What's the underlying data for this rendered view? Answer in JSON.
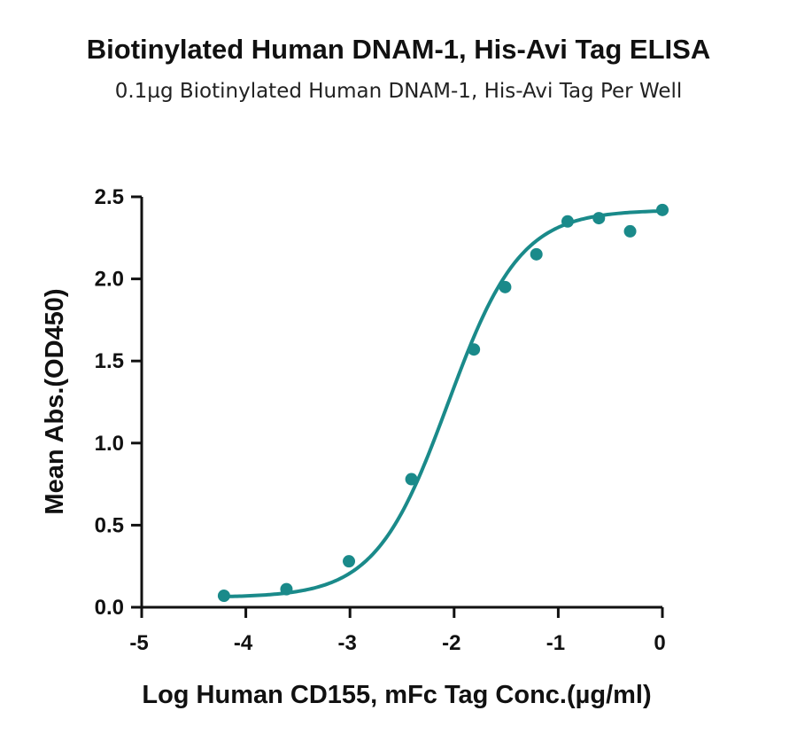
{
  "title": "Biotinylated Human DNAM-1, His-Avi Tag ELISA",
  "subtitle": "0.1µg Biotinylated Human DNAM-1, His-Avi Tag Per Well",
  "colors": {
    "series": "#1a8a8a",
    "axis": "#111111"
  },
  "chart_data": {
    "type": "scatter",
    "title": "Biotinylated Human DNAM-1, His-Avi Tag ELISA",
    "subtitle": "0.1µg Biotinylated Human DNAM-1, His-Avi Tag Per Well",
    "xlabel": "Log Human CD155, mFc Tag Conc.(µg/ml)",
    "ylabel": "Mean Abs.(OD450)",
    "xlim": [
      -5,
      0
    ],
    "ylim": [
      0,
      2.5
    ],
    "xticks": [
      -5,
      -4,
      -3,
      -2,
      -1,
      0
    ],
    "xtick_labels": [
      "-5",
      "-4",
      "-3",
      "-2",
      "-1",
      "0"
    ],
    "yticks": [
      0,
      0.5,
      1,
      1.5,
      2,
      2.5
    ],
    "ytick_labels": [
      "0.0",
      "0.5",
      "1.0",
      "1.5",
      "2.0",
      "2.5"
    ],
    "grid": false,
    "series": [
      {
        "x": [
          -4.21,
          -3.61,
          -3.01,
          -2.41,
          -1.81,
          -1.51,
          -1.21,
          -0.91,
          -0.61,
          -0.31,
          0.0
        ],
        "y": [
          0.07,
          0.11,
          0.28,
          0.78,
          1.57,
          1.95,
          2.15,
          2.35,
          2.37,
          2.29,
          2.42
        ]
      }
    ],
    "fit_curve": {
      "model": "4PL",
      "bottom": 0.06,
      "top": 2.42,
      "logEC50": -2.06,
      "hillslope": 1.25,
      "x_range": [
        -4.21,
        0.0
      ]
    }
  }
}
